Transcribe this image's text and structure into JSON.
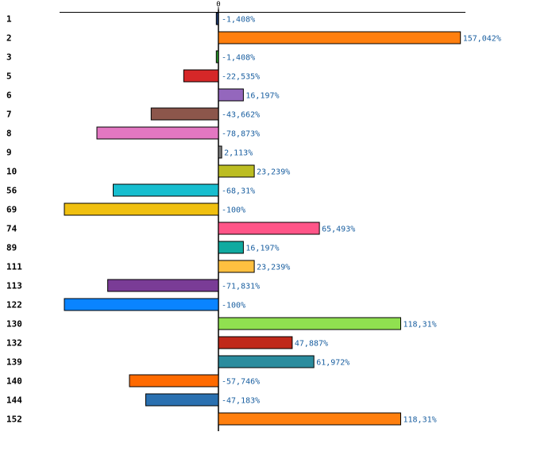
{
  "chart_data": {
    "type": "bar",
    "orientation": "horizontal",
    "title": "",
    "xlabel": "",
    "ylabel": "",
    "xlim": [
      -100,
      160
    ],
    "zero_tick_label": "0",
    "grid": false,
    "categories": [
      "1",
      "2",
      "3",
      "5",
      "6",
      "7",
      "8",
      "9",
      "10",
      "56",
      "69",
      "74",
      "89",
      "111",
      "113",
      "122",
      "130",
      "132",
      "139",
      "140",
      "144",
      "152"
    ],
    "values": [
      -1.408,
      157.042,
      -1.408,
      -22.535,
      16.197,
      -43.662,
      -78.873,
      2.113,
      23.239,
      -68.31,
      -100,
      65.493,
      16.197,
      23.239,
      -71.831,
      -100,
      118.31,
      47.887,
      61.972,
      -57.746,
      -47.183,
      118.31
    ],
    "value_labels": [
      "-1,408%",
      "157,042%",
      "-1,408%",
      "-22,535%",
      "16,197%",
      "-43,662%",
      "-78,873%",
      "2,113%",
      "23,239%",
      "-68,31%",
      "-100%",
      "65,493%",
      "16,197%",
      "23,239%",
      "-71,831%",
      "-100%",
      "118,31%",
      "47,887%",
      "61,972%",
      "-57,746%",
      "-47,183%",
      "118,31%"
    ],
    "colors": [
      "#1f3b73",
      "#ff7f0e",
      "#2ca02c",
      "#d62728",
      "#9467bd",
      "#8c564b",
      "#e377c2",
      "#7f7f7f",
      "#bcbd22",
      "#17becf",
      "#f0c010",
      "#ff5588",
      "#10aaa0",
      "#ffc040",
      "#7a3c96",
      "#0a84ff",
      "#90e050",
      "#c0281a",
      "#2b8c9e",
      "#ff6a00",
      "#2a70b0",
      "#ff7f0e"
    ]
  }
}
